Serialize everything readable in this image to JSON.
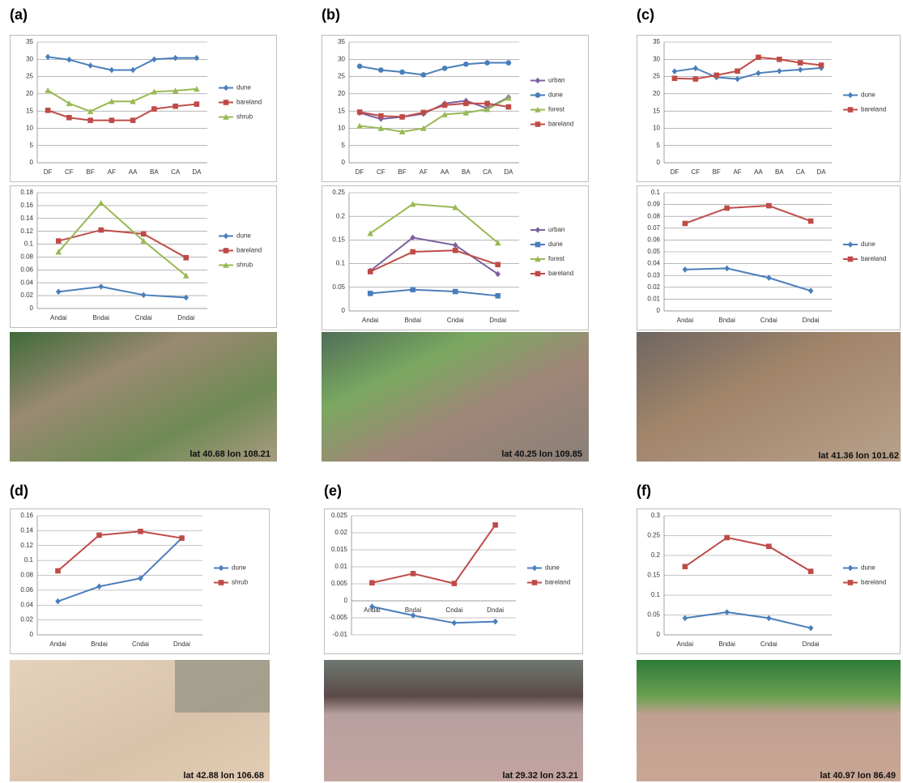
{
  "panels": [
    {
      "label": "(a)",
      "caption": "lat 40.68 lon 108.21"
    },
    {
      "label": "(b)",
      "caption": "lat 40.25 lon 109.85"
    },
    {
      "label": "(c)",
      "caption": "lat 41.36 lon 101.62"
    },
    {
      "label": "(d)",
      "caption": "lat 42.88 lon 106.68"
    },
    {
      "label": "(e)",
      "caption": "lat 29.32 lon 23.21"
    },
    {
      "label": "(f)",
      "caption": "lat 40.97 lon 86.49"
    }
  ],
  "chart_data": [
    {
      "type": "line",
      "grid": true,
      "legend": "right",
      "categories": [
        "DF",
        "CF",
        "BF",
        "AF",
        "AA",
        "BA",
        "CA",
        "DA"
      ],
      "ylim": [
        0,
        35
      ],
      "yticks": [
        0,
        5,
        10,
        15,
        20,
        25,
        30,
        35
      ],
      "series": [
        {
          "name": "dune",
          "color": "#4a7ebb",
          "marker": "diamond",
          "values": [
            30.7,
            29.9,
            28.2,
            26.9,
            26.9,
            30.0,
            30.4,
            30.4
          ]
        },
        {
          "name": "bareland",
          "color": "#be4b48",
          "marker": "square",
          "values": [
            15.2,
            13.1,
            12.3,
            12.3,
            12.3,
            15.6,
            16.4,
            17.0
          ]
        },
        {
          "name": "shrub",
          "color": "#98b954",
          "marker": "triangle",
          "values": [
            21.0,
            17.2,
            14.9,
            17.8,
            17.8,
            20.6,
            20.9,
            21.4
          ]
        }
      ]
    },
    {
      "type": "line",
      "grid": true,
      "legend": "right",
      "categories": [
        "Andai",
        "Bndai",
        "Cndai",
        "Dndai"
      ],
      "ylim": [
        0,
        0.18
      ],
      "yticks": [
        0,
        0.02,
        0.04,
        0.06,
        0.08,
        0.1,
        0.12,
        0.14,
        0.16,
        0.18
      ],
      "series": [
        {
          "name": "dune",
          "color": "#4a7ebb",
          "marker": "diamond",
          "values": [
            0.026,
            0.034,
            0.021,
            0.017
          ]
        },
        {
          "name": "bareland",
          "color": "#be4b48",
          "marker": "square",
          "values": [
            0.105,
            0.122,
            0.116,
            0.079
          ]
        },
        {
          "name": "shrub",
          "color": "#98b954",
          "marker": "triangle",
          "values": [
            0.088,
            0.164,
            0.105,
            0.051
          ]
        }
      ]
    },
    {
      "type": "line",
      "grid": true,
      "legend": "right",
      "categories": [
        "DF",
        "CF",
        "BF",
        "AF",
        "AA",
        "BA",
        "CA",
        "DA"
      ],
      "ylim": [
        0,
        35
      ],
      "yticks": [
        0,
        5,
        10,
        15,
        20,
        25,
        30,
        35
      ],
      "series": [
        {
          "name": "urban",
          "color": "#7d60a0",
          "marker": "diamond",
          "values": [
            14.5,
            12.7,
            13.3,
            14.2,
            17.2,
            18.0,
            15.8,
            19.0
          ]
        },
        {
          "name": "dune",
          "color": "#4a7ebb",
          "marker": "circle",
          "values": [
            28.0,
            26.9,
            26.3,
            25.5,
            27.4,
            28.6,
            29.0,
            29.0
          ]
        },
        {
          "name": "forest",
          "color": "#98b954",
          "marker": "triangle",
          "values": [
            10.7,
            10.0,
            9.0,
            10.0,
            14.0,
            14.5,
            15.5,
            18.8
          ]
        },
        {
          "name": "bareland",
          "color": "#be4b48",
          "marker": "square",
          "values": [
            14.7,
            13.6,
            13.3,
            14.6,
            16.7,
            17.2,
            17.2,
            16.2
          ]
        }
      ]
    },
    {
      "type": "line",
      "grid": true,
      "legend": "right",
      "categories": [
        "Andai",
        "Bndai",
        "Cndai",
        "Dndai"
      ],
      "ylim": [
        0,
        0.25
      ],
      "yticks": [
        0,
        0.05,
        0.1,
        0.15,
        0.2,
        0.25
      ],
      "series": [
        {
          "name": "urban",
          "color": "#7d60a0",
          "marker": "diamond",
          "values": [
            0.085,
            0.155,
            0.139,
            0.078
          ]
        },
        {
          "name": "dune",
          "color": "#4a7ebb",
          "marker": "square",
          "values": [
            0.037,
            0.045,
            0.041,
            0.032
          ]
        },
        {
          "name": "forest",
          "color": "#98b954",
          "marker": "triangle",
          "values": [
            0.164,
            0.226,
            0.219,
            0.144
          ]
        },
        {
          "name": "bareland",
          "color": "#be4b48",
          "marker": "square",
          "values": [
            0.083,
            0.125,
            0.128,
            0.098
          ]
        }
      ]
    },
    {
      "type": "line",
      "grid": true,
      "legend": "right",
      "categories": [
        "DF",
        "CF",
        "BF",
        "AF",
        "AA",
        "BA",
        "CA",
        "DA"
      ],
      "ylim": [
        0,
        35
      ],
      "yticks": [
        0,
        5,
        10,
        15,
        20,
        25,
        30,
        35
      ],
      "series": [
        {
          "name": "dune",
          "color": "#4a7ebb",
          "marker": "diamond",
          "values": [
            26.5,
            27.4,
            24.8,
            24.3,
            26.0,
            26.6,
            27.0,
            27.5
          ]
        },
        {
          "name": "bareland",
          "color": "#be4b48",
          "marker": "square",
          "values": [
            24.5,
            24.3,
            25.4,
            26.6,
            30.6,
            30.0,
            29.0,
            28.3
          ]
        }
      ]
    },
    {
      "type": "line",
      "grid": true,
      "legend": "right",
      "categories": [
        "Andai",
        "Bndai",
        "Cndai",
        "Dndai"
      ],
      "ylim": [
        0,
        0.1
      ],
      "yticks": [
        0,
        0.01,
        0.02,
        0.03,
        0.04,
        0.05,
        0.06,
        0.07,
        0.08,
        0.09,
        0.1
      ],
      "series": [
        {
          "name": "dune",
          "color": "#4a7ebb",
          "marker": "diamond",
          "values": [
            0.035,
            0.036,
            0.028,
            0.017
          ]
        },
        {
          "name": "bareland",
          "color": "#be4b48",
          "marker": "square",
          "values": [
            0.074,
            0.087,
            0.089,
            0.076
          ]
        }
      ]
    },
    {
      "type": "line",
      "grid": true,
      "legend": "right",
      "categories": [
        "Andai",
        "Bndai",
        "Cndai",
        "Dndai"
      ],
      "ylim": [
        0,
        0.16
      ],
      "yticks": [
        0,
        0.02,
        0.04,
        0.06,
        0.08,
        0.1,
        0.12,
        0.14,
        0.16
      ],
      "series": [
        {
          "name": "dune",
          "color": "#4a7ebb",
          "marker": "diamond",
          "values": [
            0.045,
            0.065,
            0.076,
            0.13
          ]
        },
        {
          "name": "shrub",
          "color": "#be4b48",
          "marker": "square",
          "values": [
            0.086,
            0.134,
            0.139,
            0.13
          ]
        }
      ]
    },
    {
      "type": "line",
      "grid": true,
      "legend": "right",
      "categories": [
        "Andai",
        "Bndai",
        "Cndai",
        "Dndai"
      ],
      "ylim": [
        -0.01,
        0.025
      ],
      "yticks": [
        -0.01,
        -0.005,
        0,
        0.005,
        0.01,
        0.015,
        0.02,
        0.025
      ],
      "series": [
        {
          "name": "dune",
          "color": "#4a7ebb",
          "marker": "diamond",
          "values": [
            -0.0017,
            -0.0043,
            -0.0065,
            -0.0061
          ]
        },
        {
          "name": "bareland",
          "color": "#be4b48",
          "marker": "square",
          "values": [
            0.0053,
            0.008,
            0.0051,
            0.0223
          ]
        }
      ]
    },
    {
      "type": "line",
      "grid": true,
      "legend": "right",
      "categories": [
        "Andai",
        "Bndai",
        "Cndai",
        "Dndai"
      ],
      "ylim": [
        0,
        0.3
      ],
      "yticks": [
        0,
        0.05,
        0.1,
        0.15,
        0.2,
        0.25,
        0.3
      ],
      "series": [
        {
          "name": "dune",
          "color": "#4a7ebb",
          "marker": "diamond",
          "values": [
            0.042,
            0.057,
            0.042,
            0.017
          ]
        },
        {
          "name": "bareland",
          "color": "#be4b48",
          "marker": "square",
          "values": [
            0.172,
            0.245,
            0.223,
            0.16
          ]
        }
      ]
    }
  ]
}
